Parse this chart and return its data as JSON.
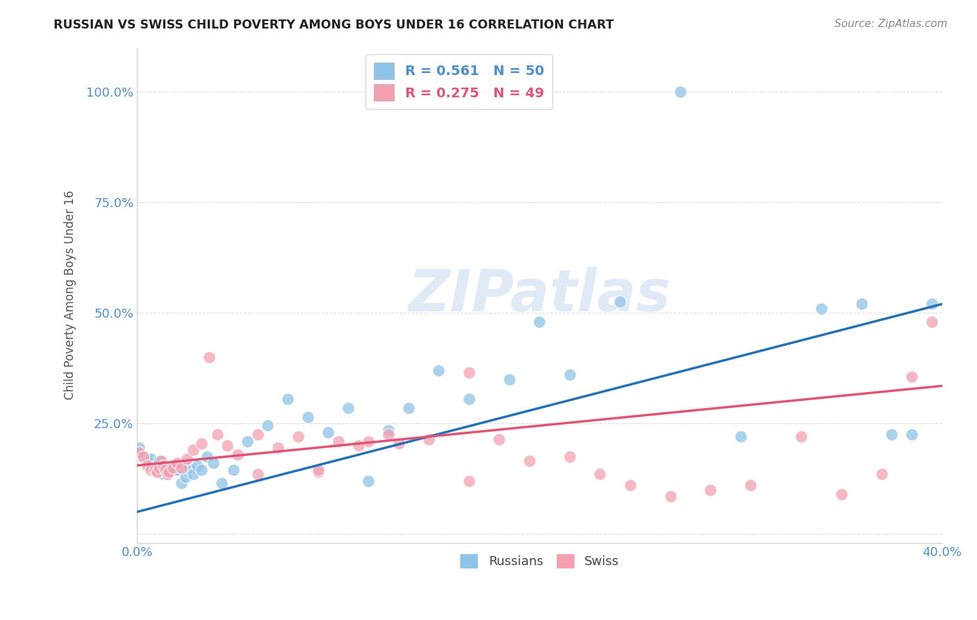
{
  "title": "RUSSIAN VS SWISS CHILD POVERTY AMONG BOYS UNDER 16 CORRELATION CHART",
  "source": "Source: ZipAtlas.com",
  "ylabel": "Child Poverty Among Boys Under 16",
  "xlim": [
    0.0,
    0.4
  ],
  "ylim": [
    -0.02,
    1.1
  ],
  "xtick_positions": [
    0.0,
    0.1,
    0.2,
    0.3,
    0.4
  ],
  "xtick_labels": [
    "0.0%",
    "",
    "",
    "",
    "40.0%"
  ],
  "ytick_positions": [
    0.0,
    0.25,
    0.5,
    0.75,
    1.0
  ],
  "ytick_labels": [
    "",
    "25.0%",
    "50.0%",
    "75.0%",
    "100.0%"
  ],
  "blue_R": 0.561,
  "blue_N": 50,
  "pink_R": 0.275,
  "pink_N": 49,
  "blue_color": "#8ec4e8",
  "pink_color": "#f4a0b0",
  "blue_line_color": "#2471b5",
  "pink_line_color": "#e05575",
  "axis_tick_color": "#4a8fd4",
  "ylabel_color": "#555555",
  "title_color": "#222222",
  "source_color": "#888888",
  "watermark_text": "ZIPatlas",
  "watermark_color": "#ccddf0",
  "grid_color": "#dddddd",
  "legend_edge_color": "#cccccc",
  "blue_line_x0": 0.0,
  "blue_line_y0": 0.05,
  "blue_line_x1": 0.4,
  "blue_line_y1": 0.52,
  "pink_line_x0": 0.0,
  "pink_line_y0": 0.155,
  "pink_line_x1": 0.4,
  "pink_line_y1": 0.335,
  "blue_x": [
    0.001,
    0.003,
    0.005,
    0.006,
    0.007,
    0.008,
    0.009,
    0.01,
    0.011,
    0.012,
    0.013,
    0.014,
    0.015,
    0.016,
    0.017,
    0.018,
    0.019,
    0.02,
    0.022,
    0.024,
    0.026,
    0.028,
    0.03,
    0.032,
    0.035,
    0.038,
    0.042,
    0.048,
    0.055,
    0.065,
    0.075,
    0.085,
    0.095,
    0.105,
    0.115,
    0.125,
    0.135,
    0.15,
    0.165,
    0.185,
    0.2,
    0.215,
    0.24,
    0.27,
    0.3,
    0.34,
    0.36,
    0.375,
    0.385,
    0.395
  ],
  "blue_y": [
    0.195,
    0.175,
    0.165,
    0.16,
    0.17,
    0.15,
    0.155,
    0.145,
    0.165,
    0.155,
    0.135,
    0.15,
    0.14,
    0.135,
    0.15,
    0.155,
    0.145,
    0.145,
    0.115,
    0.13,
    0.15,
    0.135,
    0.155,
    0.145,
    0.175,
    0.16,
    0.115,
    0.145,
    0.21,
    0.245,
    0.305,
    0.265,
    0.23,
    0.285,
    0.12,
    0.235,
    0.285,
    0.37,
    0.305,
    0.35,
    0.48,
    0.36,
    0.525,
    1.0,
    0.22,
    0.51,
    0.52,
    0.225,
    0.225,
    0.52
  ],
  "pink_x": [
    0.001,
    0.003,
    0.005,
    0.007,
    0.009,
    0.01,
    0.011,
    0.012,
    0.013,
    0.014,
    0.015,
    0.016,
    0.018,
    0.02,
    0.022,
    0.025,
    0.028,
    0.032,
    0.036,
    0.04,
    0.045,
    0.05,
    0.06,
    0.07,
    0.08,
    0.09,
    0.1,
    0.115,
    0.13,
    0.145,
    0.165,
    0.18,
    0.195,
    0.215,
    0.23,
    0.245,
    0.265,
    0.285,
    0.305,
    0.33,
    0.35,
    0.37,
    0.385,
    0.395,
    0.165,
    0.09,
    0.11,
    0.125,
    0.06
  ],
  "pink_y": [
    0.185,
    0.175,
    0.155,
    0.145,
    0.145,
    0.14,
    0.15,
    0.165,
    0.155,
    0.145,
    0.135,
    0.14,
    0.15,
    0.16,
    0.15,
    0.17,
    0.19,
    0.205,
    0.4,
    0.225,
    0.2,
    0.18,
    0.225,
    0.195,
    0.22,
    0.14,
    0.21,
    0.21,
    0.205,
    0.215,
    0.12,
    0.215,
    0.165,
    0.175,
    0.135,
    0.11,
    0.085,
    0.1,
    0.11,
    0.22,
    0.09,
    0.135,
    0.355,
    0.48,
    0.365,
    0.145,
    0.2,
    0.225,
    0.135
  ]
}
